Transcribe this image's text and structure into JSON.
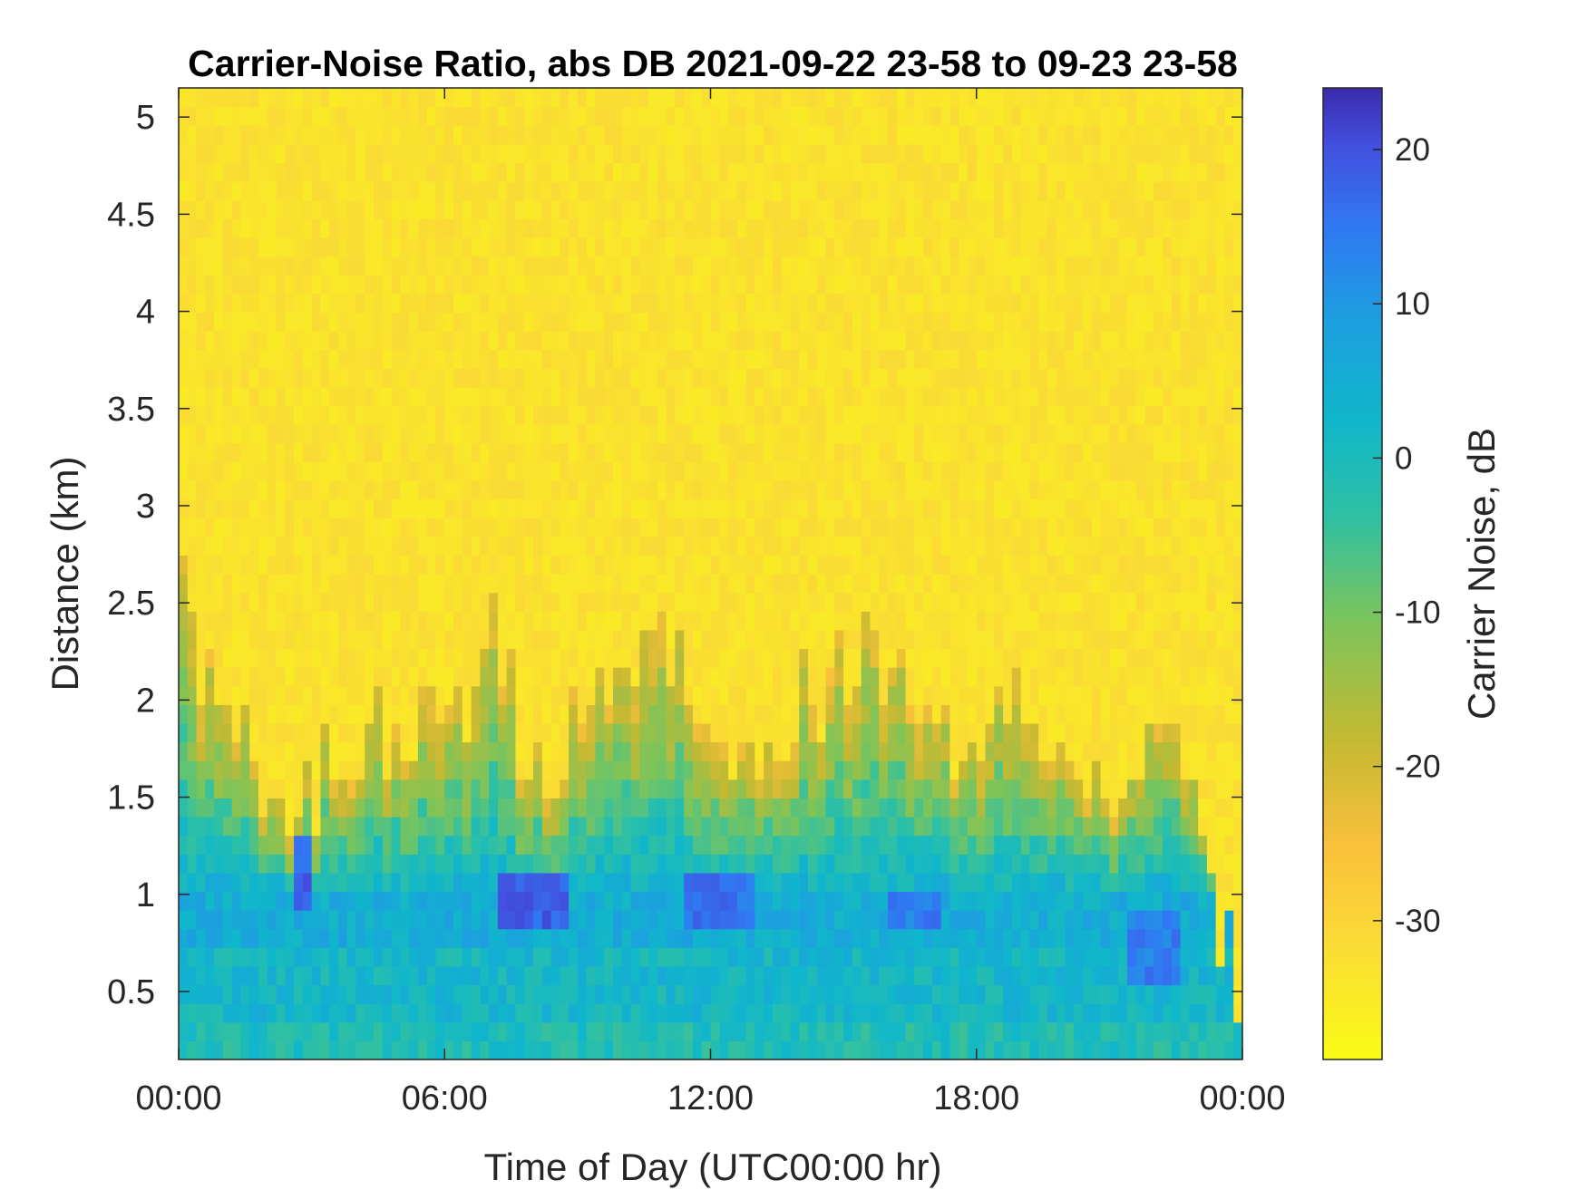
{
  "chart_data": {
    "type": "heatmap",
    "title": "Carrier-Noise Ratio, abs DB 2021-09-22 23-58 to 09-23 23-58",
    "xlabel": "Time of Day (UTC00:00 hr)",
    "ylabel": "Distance (km)",
    "colorbar_label": "Carrier Noise, dB",
    "colormap": "parula-reversed",
    "x_range_hours": [
      0,
      24
    ],
    "y_range_km": [
      0.15,
      5.15
    ],
    "color_range_db": [
      -39,
      24
    ],
    "x_ticks": [
      {
        "value": 0,
        "label": "00:00"
      },
      {
        "value": 6,
        "label": "06:00"
      },
      {
        "value": 12,
        "label": "12:00"
      },
      {
        "value": 18,
        "label": "18:00"
      },
      {
        "value": 24,
        "label": "00:00"
      }
    ],
    "y_ticks": [
      {
        "value": 0.5,
        "label": "0.5"
      },
      {
        "value": 1,
        "label": "1"
      },
      {
        "value": 1.5,
        "label": "1.5"
      },
      {
        "value": 2,
        "label": "2"
      },
      {
        "value": 2.5,
        "label": "2.5"
      },
      {
        "value": 3,
        "label": "3"
      },
      {
        "value": 3.5,
        "label": "3.5"
      },
      {
        "value": 4,
        "label": "4"
      },
      {
        "value": 4.5,
        "label": "4.5"
      },
      {
        "value": 5,
        "label": "5"
      }
    ],
    "colorbar_ticks": [
      {
        "value": 20,
        "label": "20"
      },
      {
        "value": 10,
        "label": "10"
      },
      {
        "value": 0,
        "label": "0"
      },
      {
        "value": -10,
        "label": "-10"
      },
      {
        "value": -20,
        "label": "-20"
      },
      {
        "value": -30,
        "label": "-30"
      }
    ],
    "background_db": -33,
    "layers": [
      {
        "from_km": 0.15,
        "to_km": 0.35,
        "db": -1
      },
      {
        "from_km": 0.35,
        "to_km": 0.7,
        "db": 2
      },
      {
        "from_km": 0.7,
        "to_km": 1.0,
        "db": 5
      }
    ],
    "signal_top_km_profile": [
      {
        "hour": 0.0,
        "top_km": 2.8
      },
      {
        "hour": 0.6,
        "top_km": 2.1
      },
      {
        "hour": 1.2,
        "top_km": 1.9
      },
      {
        "hour": 2.5,
        "top_km": 1.3
      },
      {
        "hour": 3.5,
        "top_km": 1.7
      },
      {
        "hour": 5.0,
        "top_km": 1.9
      },
      {
        "hour": 6.5,
        "top_km": 2.0
      },
      {
        "hour": 7.0,
        "top_km": 2.4
      },
      {
        "hour": 8.0,
        "top_km": 1.6
      },
      {
        "hour": 9.5,
        "top_km": 2.0
      },
      {
        "hour": 11.0,
        "top_km": 2.4
      },
      {
        "hour": 12.5,
        "top_km": 1.6
      },
      {
        "hour": 14.0,
        "top_km": 2.0
      },
      {
        "hour": 15.5,
        "top_km": 2.2
      },
      {
        "hour": 17.5,
        "top_km": 1.8
      },
      {
        "hour": 19.0,
        "top_km": 2.0
      },
      {
        "hour": 21.0,
        "top_km": 1.6
      },
      {
        "hour": 22.5,
        "top_km": 2.0
      },
      {
        "hour": 23.5,
        "top_km": 0.8
      },
      {
        "hour": 24.0,
        "top_km": 0.5
      }
    ],
    "strong_returns": [
      {
        "hour_from": 2.6,
        "hour_to": 3.0,
        "km_from": 0.9,
        "km_to": 1.3,
        "db": 18
      },
      {
        "hour_from": 7.2,
        "hour_to": 8.8,
        "km_from": 0.85,
        "km_to": 1.1,
        "db": 18
      },
      {
        "hour_from": 11.5,
        "hour_to": 13.0,
        "km_from": 0.85,
        "km_to": 1.1,
        "db": 16
      },
      {
        "hour_from": 16.0,
        "hour_to": 17.2,
        "km_from": 0.8,
        "km_to": 1.0,
        "db": 14
      },
      {
        "hour_from": 21.5,
        "hour_to": 22.5,
        "km_from": 0.5,
        "km_to": 0.9,
        "db": 14
      }
    ]
  }
}
